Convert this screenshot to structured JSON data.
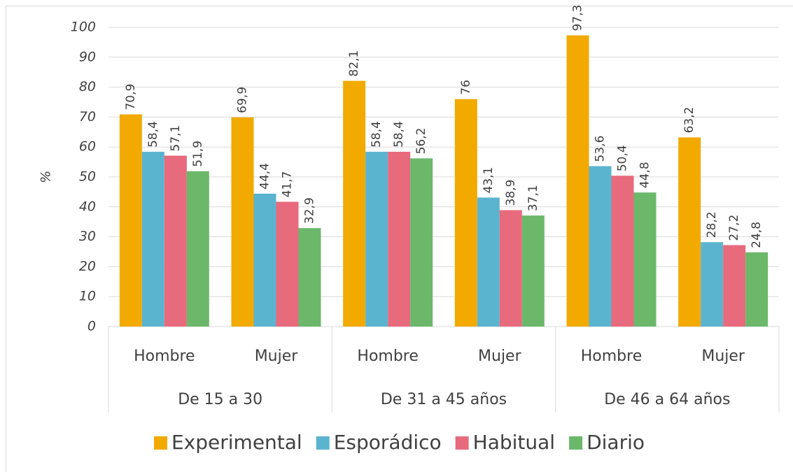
{
  "chart_data": {
    "type": "bar",
    "ylabel": "%",
    "categories": [
      "Hombre",
      "Mujer",
      "Hombre",
      "Mujer",
      "Hombre",
      "Mujer"
    ],
    "category_groups": [
      "De 15 a 30",
      "De 31 a 45 años",
      "De 46 a 64 años"
    ],
    "series": [
      {
        "name": "Experimental",
        "color": "#f2a900",
        "values": [
          70.9,
          69.9,
          82.1,
          76,
          97.3,
          63.2
        ],
        "value_labels": [
          "70,9",
          "69,9",
          "82,1",
          "76",
          "97,3",
          "63,2"
        ]
      },
      {
        "name": "Esporádico",
        "color": "#5bb4cf",
        "values": [
          58.4,
          44.4,
          58.4,
          43.1,
          53.6,
          28.2
        ],
        "value_labels": [
          "58,4",
          "44,4",
          "58,4",
          "43,1",
          "53,6",
          "28,2"
        ]
      },
      {
        "name": "Habitual",
        "color": "#e86a7d",
        "values": [
          57.1,
          41.7,
          58.4,
          38.9,
          50.4,
          27.2
        ],
        "value_labels": [
          "57,1",
          "41,7",
          "58,4",
          "38,9",
          "50,4",
          "27,2"
        ]
      },
      {
        "name": "Diario",
        "color": "#6bb86b",
        "values": [
          51.9,
          32.9,
          56.2,
          37.1,
          44.8,
          24.8
        ],
        "value_labels": [
          "51,9",
          "32,9",
          "56,2",
          "37,1",
          "44,8",
          "24,8"
        ]
      }
    ],
    "ylim": [
      0,
      100
    ],
    "yticks": [
      0,
      10,
      20,
      30,
      40,
      50,
      60,
      70,
      80,
      90,
      100
    ],
    "grid": true,
    "legend": "bottom"
  }
}
